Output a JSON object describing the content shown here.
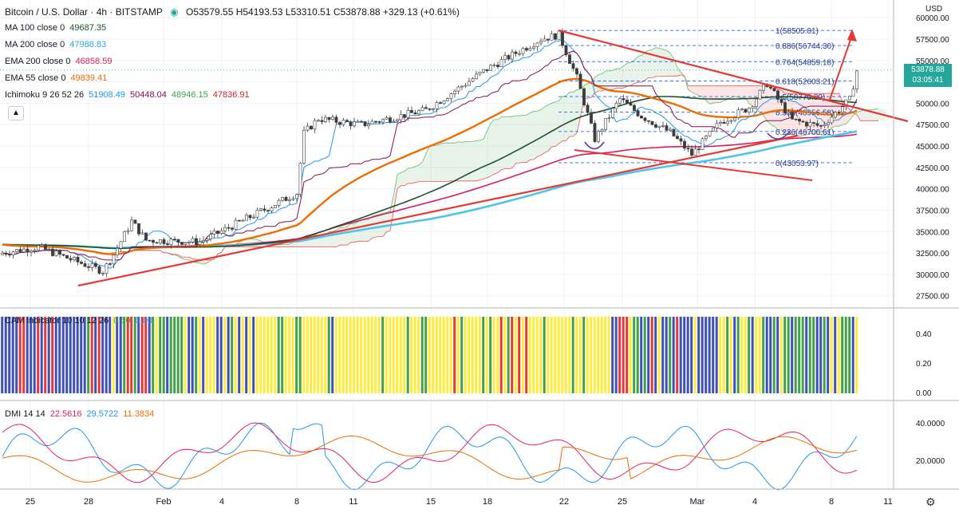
{
  "header": {
    "title": "Bitcoin / U.S. Dollar · 4h · BITSTAMP",
    "ohlc": "O53579.55  H54193.53  L53310.51  C53878.88  +329.13 (+0.61%)",
    "currency": "USD",
    "last_price": "53878.88",
    "countdown": "03:05:41"
  },
  "indicators": [
    {
      "label": "MA 100 close 0",
      "value": "49687.35",
      "color": "#1e5128"
    },
    {
      "label": "MA 200 close 0",
      "value": "47988.83",
      "color": "#4fc3e8"
    },
    {
      "label": "EMA 200 close 0",
      "value": "46858.59",
      "color": "#d81b60"
    },
    {
      "label": "EMA 55 close 0",
      "value": "49839.41",
      "color": "#ef6c00"
    },
    {
      "label": "Ichimoku 9 26 52 26",
      "values": [
        "51908.49",
        "50448.04",
        "48946.15",
        "47836.91"
      ],
      "colors": [
        "#2196f3",
        "#880e4f",
        "#43a047",
        "#c62828"
      ]
    }
  ],
  "cam": {
    "label": "CAM indicator 10 10 12 26",
    "values": [
      "0.50",
      "0.00"
    ],
    "ticks": [
      "0.40",
      "0.20",
      "0.00"
    ]
  },
  "dmi": {
    "label": "DMI 14 14",
    "values": [
      "22.5616",
      "29.5722",
      "11.3834"
    ],
    "colors": [
      "#e91e63",
      "#2196f3",
      "#ef6c00"
    ],
    "ticks": [
      "40.0000",
      "20.0000"
    ]
  },
  "chart_data": {
    "type": "candlestick",
    "price_ticks": [
      "60000.00",
      "57500.00",
      "55000.00",
      "52500.00",
      "50000.00",
      "47500.00",
      "45000.00",
      "42500.00",
      "40000.00",
      "37500.00",
      "35000.00",
      "32500.00",
      "30000.00",
      "27500.00"
    ],
    "x_ticks": [
      "25",
      "28",
      "Feb",
      "4",
      "8",
      "11",
      "15",
      "18",
      "22",
      "25",
      "Mar",
      "4",
      "8",
      "11"
    ],
    "fib_levels": [
      {
        "label": "1(58505.81)",
        "price": 58505.81
      },
      {
        "label": "0.886(56744.30)",
        "price": 56744.3
      },
      {
        "label": "0.764(54859.18)",
        "price": 54859.18
      },
      {
        "label": "0.618(52603.21)",
        "price": 52603.21
      },
      {
        "label": "0.5(50779.89)",
        "price": 50779.89
      },
      {
        "label": "0.382(48956.58)",
        "price": 48956.58
      },
      {
        "label": "0.236(46700.61)",
        "price": 46700.61
      },
      {
        "label": "0(43053.97)",
        "price": 43053.97
      }
    ]
  }
}
